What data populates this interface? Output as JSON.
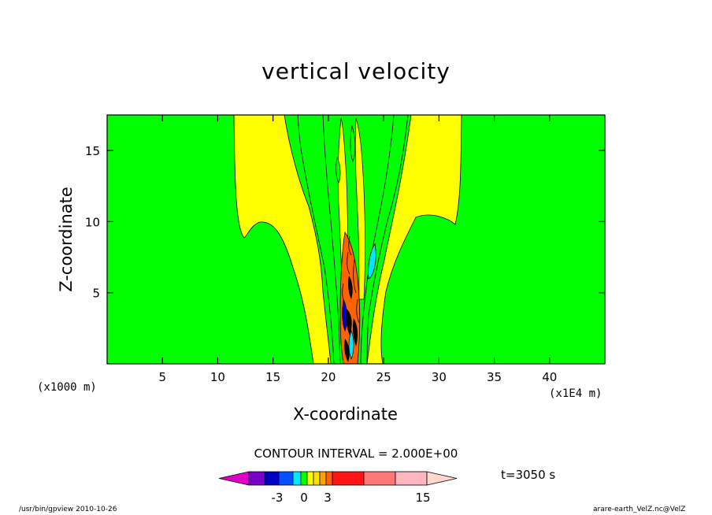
{
  "chart_data": {
    "type": "contour",
    "title": "vertical velocity",
    "xlabel": "X-coordinate",
    "ylabel": "Z-coordinate",
    "x_unit_left": "(x1000 m)",
    "x_unit_right": "(x1E4 m)",
    "xlim": [
      0,
      45
    ],
    "ylim": [
      0,
      17.5
    ],
    "x_ticks": [
      5,
      10,
      15,
      20,
      25,
      30,
      35,
      40
    ],
    "y_ticks": [
      5,
      10,
      15
    ],
    "contour_interval_text": "CONTOUR INTERVAL = 2.000E+00",
    "time_text": "t=3050 s",
    "colorbar_tick_labels": [
      "-3",
      "0",
      "3",
      "15"
    ],
    "colorbar_colors": [
      "#e000c8",
      "#7800c8",
      "#0000c8",
      "#0050ff",
      "#00e8ff",
      "#00ff00",
      "#ffff00",
      "#ffe000",
      "#ffa000",
      "#ff6400",
      "#ff1414",
      "#ff7878",
      "#ffb4c0",
      "#ffd8d0"
    ],
    "background_color": "#00ff00",
    "positive_color": "#ffff00",
    "strong_positive_color": "#ff6400",
    "negative_color": "#00e8ff",
    "strong_negative_color": "#0000c8"
  },
  "footer": {
    "left": "/usr/bin/gpview   2010-10-26",
    "right": "arare-earth_VelZ.nc@VelZ"
  }
}
